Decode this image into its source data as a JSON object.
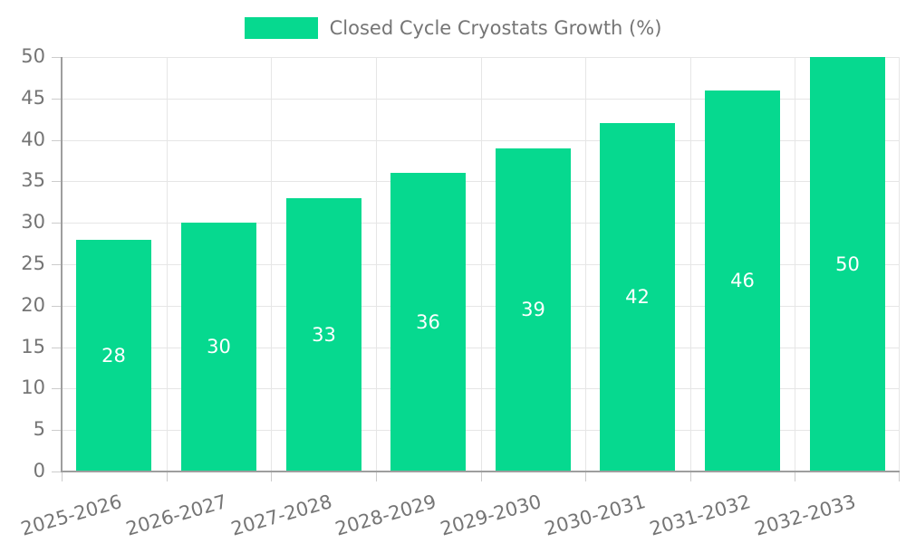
{
  "legend": {
    "label": "Closed Cycle Cryostats Growth (%)"
  },
  "chart_data": {
    "type": "bar",
    "title": "Closed Cycle Cryostats Growth (%)",
    "series_name": "Closed Cycle Cryostats Growth (%)",
    "categories": [
      "2025-2026",
      "2026-2027",
      "2027-2028",
      "2028-2029",
      "2029-2030",
      "2030-2031",
      "2031-2032",
      "2032-2033"
    ],
    "values": [
      28,
      30,
      33,
      36,
      39,
      42,
      46,
      50
    ],
    "value_labels": [
      "28",
      "30",
      "33",
      "36",
      "39",
      "42",
      "46",
      "50"
    ],
    "xlabel": "",
    "ylabel": "",
    "ylim": [
      0,
      50
    ],
    "ytick_step": 5,
    "grid": true,
    "legend_position": "top",
    "colors": {
      "bar": "#06d98f",
      "value_label": "#ffffff",
      "grid": "#e6e6e6",
      "tick_mark": "#cccccc",
      "axis": "#9e9e9e",
      "tick_text": "#757575"
    }
  }
}
